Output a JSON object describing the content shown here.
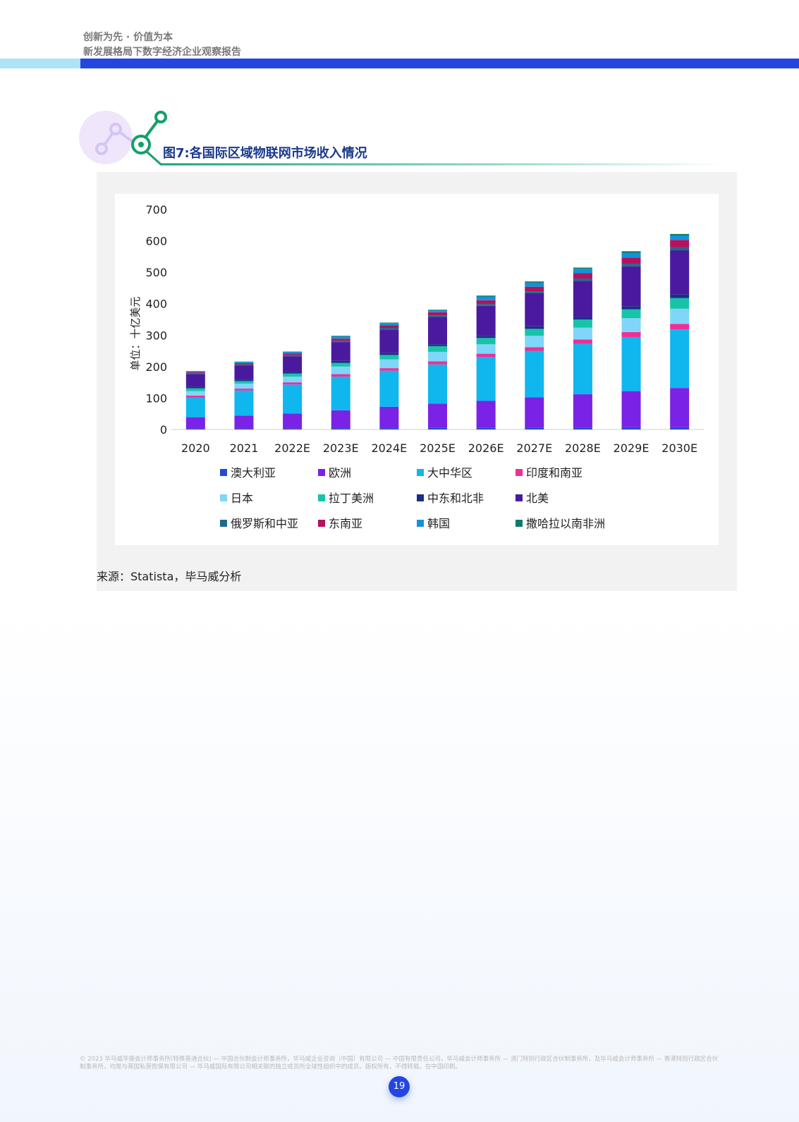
{
  "header": {
    "line1": "创新为先 · 价值为本",
    "line2": "新发展格局下数字经济企业观察报告"
  },
  "figure": {
    "title": "图7:各国际区域物联网市场收入情况",
    "source": "来源：Statista，毕马威分析"
  },
  "footer": {
    "note": "© 2023 毕马威华振会计师事务所(特殊普通合伙) — 中国合伙制会计师事务所，毕马威企业咨询（中国）有限公司 — 中国有限责任公司，毕马威会计师事务所 — 澳门特别行政区合伙制事务所，及毕马威会计师事务所 — 香港特别行政区合伙制事务所，均是与英国私营担保有限公司 — 毕马威国际有限公司相关联的独立成员所全球性组织中的成员。版权所有，不得转载。在中国印刷。",
    "page_number": "19"
  },
  "colors": {
    "header_dark_bar": "#2346e0",
    "header_light_bar": "#a9e4f7",
    "title": "#1b3a8c",
    "accent_green": "#12a06a"
  },
  "chart_data": {
    "type": "bar",
    "stacked": true,
    "ylabel": "单位：十亿美元",
    "xlabel": "",
    "ylim": [
      0,
      700
    ],
    "yticks": [
      0,
      100,
      200,
      300,
      400,
      500,
      600,
      700
    ],
    "grid": false,
    "legend_position": "bottom",
    "categories": [
      "2020",
      "2021",
      "2022E",
      "2023E",
      "2024E",
      "2025E",
      "2026E",
      "2027E",
      "2028E",
      "2029E",
      "2030E"
    ],
    "series": [
      {
        "name": "澳大利亚",
        "color": "#2349d6",
        "values": [
          3,
          3,
          3,
          4,
          4,
          5,
          5,
          6,
          6,
          7,
          7
        ]
      },
      {
        "name": "欧洲",
        "color": "#7a22e6",
        "values": [
          36,
          41,
          48,
          57,
          68,
          77,
          86,
          96,
          106,
          115,
          125
        ]
      },
      {
        "name": "大中华区",
        "color": "#10b6ee",
        "values": [
          63,
          80,
          92,
          107,
          115,
          125,
          140,
          148,
          160,
          172,
          186
        ]
      },
      {
        "name": "印度和南亚",
        "color": "#f02e96",
        "values": [
          6,
          6,
          7,
          8,
          8,
          10,
          10,
          12,
          14,
          16,
          18
        ]
      },
      {
        "name": "日本",
        "color": "#7fd6f8",
        "values": [
          14,
          16,
          18,
          24,
          28,
          30,
          30,
          36,
          38,
          44,
          48
        ]
      },
      {
        "name": "拉丁美洲",
        "color": "#18c4a8",
        "values": [
          9,
          8,
          10,
          12,
          14,
          18,
          20,
          22,
          26,
          28,
          34
        ]
      },
      {
        "name": "中东和北非",
        "color": "#1a2d8c",
        "values": [
          5,
          5,
          5,
          6,
          6,
          6,
          7,
          8,
          8,
          10,
          12
        ]
      },
      {
        "name": "北美",
        "color": "#4a1a9e",
        "values": [
          40,
          45,
          50,
          60,
          75,
          87,
          95,
          105,
          115,
          127,
          140
        ]
      },
      {
        "name": "俄罗斯和中亚",
        "color": "#1d6a8e",
        "values": [
          3,
          3,
          4,
          4,
          5,
          5,
          6,
          6,
          7,
          8,
          9
        ]
      },
      {
        "name": "东南亚",
        "color": "#b3125e",
        "values": [
          3,
          4,
          5,
          7,
          8,
          10,
          12,
          15,
          17,
          20,
          24
        ]
      },
      {
        "name": "韩国",
        "color": "#1492d8",
        "values": [
          3,
          4,
          5,
          7,
          7,
          6,
          12,
          13,
          14,
          15,
          14
        ]
      },
      {
        "name": "撒哈拉以南非洲",
        "color": "#0f7a68",
        "values": [
          1,
          1,
          1,
          2,
          2,
          2,
          3,
          4,
          4,
          5,
          5
        ]
      }
    ]
  }
}
